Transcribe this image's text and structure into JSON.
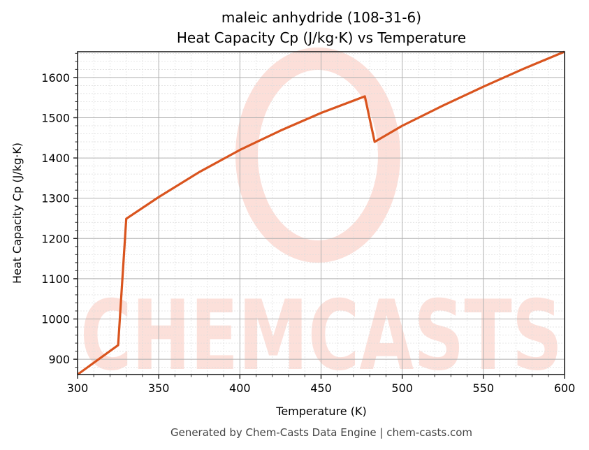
{
  "chart_data": {
    "type": "line",
    "title": "maleic anhydride (108-31-6)",
    "subtitle": "Heat Capacity Cp (J/kg·K) vs Temperature",
    "xlabel": "Temperature (K)",
    "ylabel": "Heat Capacity Cp (J/kg·K)",
    "xlim": [
      300,
      600
    ],
    "ylim": [
      862,
      1664
    ],
    "x_ticks": [
      300,
      350,
      400,
      450,
      500,
      550,
      600
    ],
    "y_ticks": [
      900,
      1000,
      1100,
      1200,
      1300,
      1400,
      1500,
      1600
    ],
    "grid": true,
    "minor_grid": true,
    "legend": null,
    "series": [
      {
        "name": "Cp",
        "color": "#d9541e",
        "x": [
          300,
          325,
          330,
          350,
          375,
          400,
          425,
          450,
          477,
          483,
          500,
          525,
          550,
          575,
          600
        ],
        "y": [
          862,
          935,
          1249,
          1303,
          1365,
          1420,
          1468,
          1512,
          1553,
          1440,
          1480,
          1530,
          1577,
          1622,
          1664
        ]
      }
    ]
  },
  "watermark": {
    "text": "CHEMCASTS",
    "color": "#fcd9d2"
  },
  "footer": {
    "text": "Generated by Chem-Casts Data Engine | chem-casts.com"
  }
}
